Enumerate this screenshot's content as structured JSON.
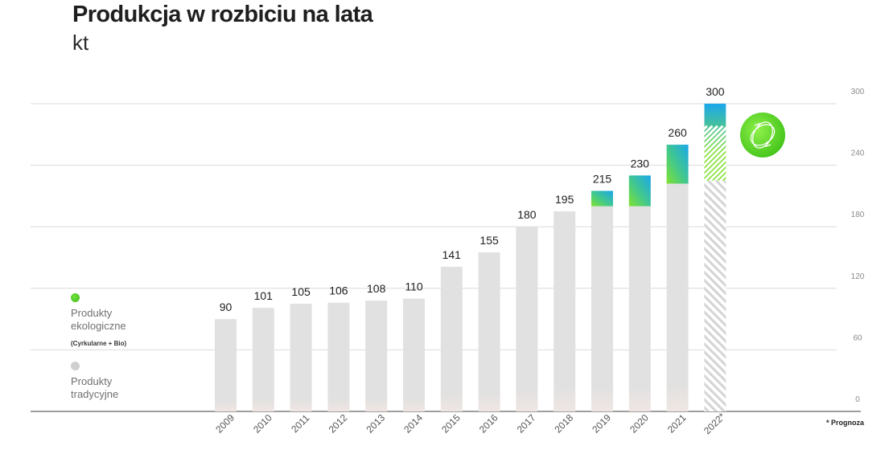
{
  "title": "Produkcja w rozbiciu na lata",
  "subtitle": "kt",
  "legend": {
    "eco_label": "Produkty ekologiczne",
    "eco_note": "(Cyrkularne + Bio)",
    "trad_label": "Produkty tradycyjne"
  },
  "footnote": "* Prognoza",
  "colors": {
    "traditional": "#e1e1e1",
    "eco_green": "#7fe12f",
    "eco_blue": "#1aa7ec",
    "icon_green": "#6fdc2a",
    "grid": "#dcdcdc",
    "baseline": "#7f7f7f"
  },
  "chart_data": {
    "type": "bar",
    "stacked": true,
    "categories": [
      "2009",
      "2010",
      "2011",
      "2012",
      "2013",
      "2014",
      "2015",
      "2016",
      "2017",
      "2018",
      "2019",
      "2020",
      "2021",
      "2022*"
    ],
    "series": [
      {
        "name": "Produkty tradycyjne",
        "values": [
          90,
          101,
          105,
          106,
          108,
          110,
          141,
          155,
          180,
          195,
          200,
          200,
          222,
          225
        ]
      },
      {
        "name": "Produkty ekologiczne",
        "values": [
          0,
          0,
          0,
          0,
          0,
          0,
          0,
          0,
          0,
          0,
          15,
          30,
          38,
          75
        ]
      }
    ],
    "totals": [
      "90",
      "101",
      "105",
      "106",
      "108",
      "110",
      "141",
      "155",
      "180",
      "195",
      "215",
      "230",
      "260",
      "300"
    ],
    "forecast_categories": [
      "2022*"
    ],
    "y_ticks": [
      "0",
      "60",
      "120",
      "180",
      "240",
      "300"
    ],
    "ylim": [
      0,
      300
    ],
    "grid": true,
    "y_axis_side": "right",
    "legend_position": "left"
  }
}
